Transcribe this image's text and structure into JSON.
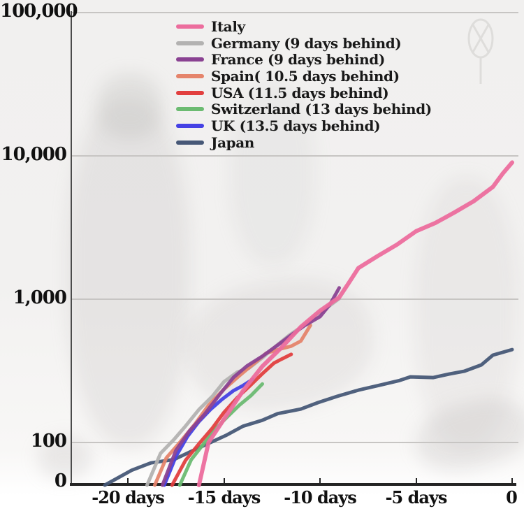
{
  "page": {
    "description": "Coronavirus cumulative deaths trajectory chart, log scale, countries shifted to align with Italy"
  },
  "chart_data": {
    "type": "line",
    "title": "",
    "y_scale": "log",
    "legend_position": "top-left-inside",
    "x_axis": {
      "label": "",
      "ticks": [
        {
          "label": "-20 days",
          "day": -20
        },
        {
          "label": "-15 days",
          "day": -15
        },
        {
          "label": "-10 days",
          "day": -10
        },
        {
          "label": "-5 days",
          "day": -5
        },
        {
          "label": "0",
          "day": 0
        }
      ]
    },
    "y_axis": {
      "label": "",
      "ticks": [
        {
          "label": "100,000",
          "value": 100000
        },
        {
          "label": "10,000",
          "value": 10000
        },
        {
          "label": "1,000",
          "value": 1000
        },
        {
          "label": "100",
          "value": 100
        },
        {
          "label": "0",
          "value": null
        }
      ]
    },
    "draw_order": [
      7,
      5,
      1,
      3,
      4,
      6,
      2,
      0
    ],
    "series": [
      {
        "name": "italy",
        "label": "Italy",
        "color": "#ec6d9d",
        "width": 6,
        "points": [
          [
            -16.3,
            50
          ],
          [
            -15.8,
            100
          ],
          [
            -15,
            145
          ],
          [
            -14,
            230
          ],
          [
            -13,
            340
          ],
          [
            -12,
            460
          ],
          [
            -11,
            640
          ],
          [
            -10,
            830
          ],
          [
            -9,
            1030
          ],
          [
            -8.5,
            1300
          ],
          [
            -8,
            1650
          ],
          [
            -7,
            2000
          ],
          [
            -6,
            2400
          ],
          [
            -5,
            2980
          ],
          [
            -4,
            3400
          ],
          [
            -3,
            4030
          ],
          [
            -2,
            4830
          ],
          [
            -1,
            6080
          ],
          [
            -0.5,
            7500
          ],
          [
            0,
            9000
          ]
        ]
      },
      {
        "name": "germany",
        "label": "Germany (9 days behind)",
        "color": "#b3b2b1",
        "width": 5,
        "points": [
          [
            -19,
            50
          ],
          [
            -18.3,
            84
          ],
          [
            -17.6,
            105
          ],
          [
            -17,
            130
          ],
          [
            -16.3,
            170
          ],
          [
            -15.6,
            210
          ],
          [
            -15,
            265
          ],
          [
            -14.3,
            310
          ],
          [
            -13.7,
            330
          ],
          [
            -13,
            390
          ],
          [
            -12.3,
            470
          ],
          [
            -11.6,
            560
          ],
          [
            -11,
            635
          ],
          [
            -10.3,
            745
          ],
          [
            -9.6,
            880
          ],
          [
            -9,
            1010
          ]
        ]
      },
      {
        "name": "france",
        "label": "France (9 days behind)",
        "color": "#8a4292",
        "width": 5,
        "points": [
          [
            -18.2,
            50
          ],
          [
            -17.5,
            88
          ],
          [
            -16.8,
            120
          ],
          [
            -16,
            158
          ],
          [
            -15.2,
            218
          ],
          [
            -14.5,
            285
          ],
          [
            -13.8,
            342
          ],
          [
            -13,
            400
          ],
          [
            -12.2,
            478
          ],
          [
            -11.5,
            562
          ],
          [
            -10.8,
            655
          ],
          [
            -10,
            755
          ],
          [
            -9.5,
            912
          ],
          [
            -9,
            1200
          ]
        ]
      },
      {
        "name": "spain",
        "label": "Spain( 10.5 days behind)",
        "color": "#e5846b",
        "width": 5,
        "points": [
          [
            -18.6,
            50
          ],
          [
            -18,
            78
          ],
          [
            -17.3,
            100
          ],
          [
            -16.5,
            135
          ],
          [
            -15.8,
            182
          ],
          [
            -15,
            235
          ],
          [
            -14.2,
            292
          ],
          [
            -13.5,
            350
          ],
          [
            -12.8,
            420
          ],
          [
            -12,
            452
          ],
          [
            -11.5,
            470
          ],
          [
            -11,
            510
          ],
          [
            -10.5,
            657
          ]
        ]
      },
      {
        "name": "usa",
        "label": "USA (11.5 days behind)",
        "color": "#e23f3f",
        "width": 5,
        "points": [
          [
            -17.7,
            50
          ],
          [
            -17,
            75
          ],
          [
            -16.3,
            98
          ],
          [
            -15.6,
            126
          ],
          [
            -15,
            162
          ],
          [
            -14.3,
            206
          ],
          [
            -13.6,
            252
          ],
          [
            -13,
            302
          ],
          [
            -12.4,
            358
          ],
          [
            -12,
            382
          ],
          [
            -11.5,
            412
          ]
        ]
      },
      {
        "name": "switzerland",
        "label": "Switzerland (13 days behind)",
        "color": "#6cbb72",
        "width": 5,
        "points": [
          [
            -17.3,
            50
          ],
          [
            -16.7,
            76
          ],
          [
            -16,
            100
          ],
          [
            -15.4,
            126
          ],
          [
            -14.8,
            152
          ],
          [
            -14.2,
            182
          ],
          [
            -13.6,
            212
          ],
          [
            -13,
            256
          ]
        ]
      },
      {
        "name": "uk",
        "label": "UK (13.5 days behind)",
        "color": "#4541e4",
        "width": 5,
        "points": [
          [
            -18.1,
            50
          ],
          [
            -17.5,
            80
          ],
          [
            -16.9,
            110
          ],
          [
            -16.3,
            140
          ],
          [
            -15.7,
            170
          ],
          [
            -15.1,
            200
          ],
          [
            -14.5,
            230
          ],
          [
            -14,
            250
          ],
          [
            -13.5,
            276
          ]
        ]
      },
      {
        "name": "japan",
        "label": "Japan",
        "color": "#475877",
        "width": 5,
        "points": [
          [
            -21.2,
            50
          ],
          [
            -19.8,
            64
          ],
          [
            -18.8,
            72
          ],
          [
            -17.6,
            76
          ],
          [
            -16.6,
            88
          ],
          [
            -15.7,
            100
          ],
          [
            -14.9,
            112
          ],
          [
            -14,
            130
          ],
          [
            -13,
            143
          ],
          [
            -12.2,
            159
          ],
          [
            -11,
            171
          ],
          [
            -10.1,
            190
          ],
          [
            -9.1,
            210
          ],
          [
            -8,
            232
          ],
          [
            -6.9,
            251
          ],
          [
            -5.9,
            270
          ],
          [
            -5.3,
            287
          ],
          [
            -4.1,
            284
          ],
          [
            -3.3,
            300
          ],
          [
            -2.5,
            314
          ],
          [
            -1.6,
            348
          ],
          [
            -1,
            407
          ],
          [
            0,
            445
          ]
        ]
      }
    ]
  }
}
